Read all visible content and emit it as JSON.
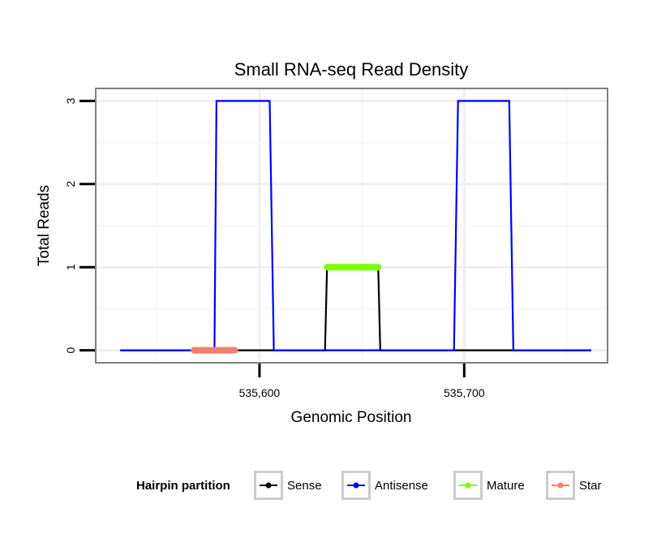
{
  "chart_data": {
    "type": "line",
    "title": "Small RNA-seq Read Density",
    "xlabel": "Genomic Position",
    "ylabel": "Total Reads",
    "xlim": [
      535520,
      535770
    ],
    "ylim": [
      -0.15,
      3.15
    ],
    "x_ticks": [
      535600,
      535700
    ],
    "x_tick_labels": [
      "535,600",
      "535,700"
    ],
    "y_ticks": [
      0,
      1,
      2,
      3
    ],
    "y_tick_labels": [
      "0",
      "1",
      "2",
      "3"
    ],
    "grid": true,
    "legend": {
      "title": "Hairpin partition",
      "position": "bottom",
      "entries": [
        "Sense",
        "Antisense",
        "Mature",
        "Star"
      ]
    },
    "series": [
      {
        "name": "Sense",
        "color": "#000000",
        "x": [
          535532,
          535632,
          535633,
          535658,
          535659,
          535762
        ],
        "values": [
          0,
          0,
          1,
          1,
          0,
          0
        ]
      },
      {
        "name": "Antisense",
        "color": "#0000ff",
        "x": [
          535532,
          535578,
          535579,
          535605,
          535607,
          535632,
          535658,
          535695,
          535697,
          535722,
          535724,
          535762
        ],
        "values": [
          0,
          0,
          3,
          3,
          0,
          0,
          0,
          0,
          3,
          3,
          0,
          0
        ]
      },
      {
        "name": "Mature",
        "color": "#7cfc00",
        "x": [
          535633,
          535658
        ],
        "values": [
          1,
          1
        ]
      },
      {
        "name": "Star",
        "color": "#f08070",
        "x": [
          535568,
          535588
        ],
        "values": [
          0,
          0
        ]
      }
    ]
  }
}
